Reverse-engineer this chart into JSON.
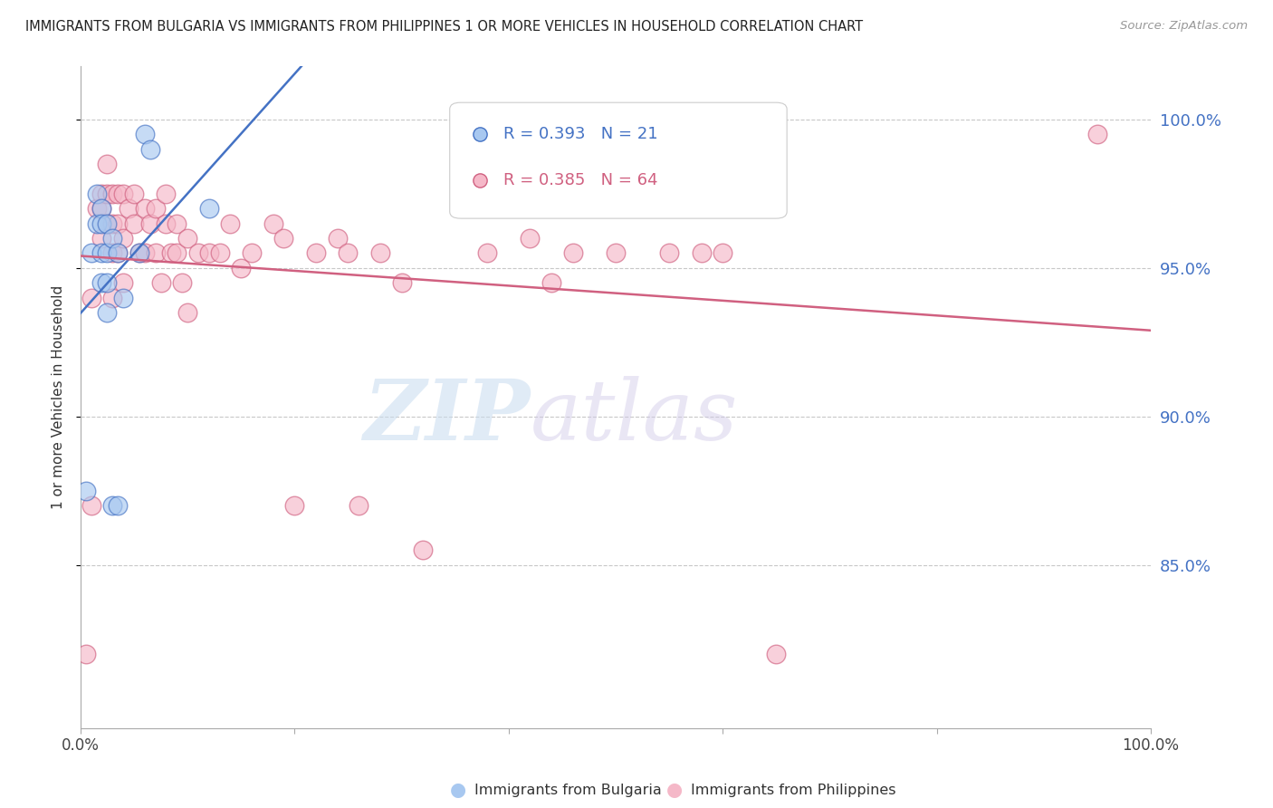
{
  "title": "IMMIGRANTS FROM BULGARIA VS IMMIGRANTS FROM PHILIPPINES 1 OR MORE VEHICLES IN HOUSEHOLD CORRELATION CHART",
  "source": "Source: ZipAtlas.com",
  "ylabel": "1 or more Vehicles in Household",
  "ytick_labels": [
    "100.0%",
    "95.0%",
    "90.0%",
    "85.0%"
  ],
  "ytick_values": [
    1.0,
    0.95,
    0.9,
    0.85
  ],
  "xlim": [
    0.0,
    1.0
  ],
  "ylim": [
    0.795,
    1.018
  ],
  "legend_bulgaria": "Immigrants from Bulgaria",
  "legend_philippines": "Immigrants from Philippines",
  "R_bulgaria": 0.393,
  "N_bulgaria": 21,
  "R_philippines": 0.385,
  "N_philippines": 64,
  "color_bulgaria": "#a8c8f0",
  "color_philippines": "#f5b8c8",
  "line_color_bulgaria": "#4472c4",
  "line_color_philippines": "#d06080",
  "watermark_zip": "ZIP",
  "watermark_atlas": "atlas",
  "background_color": "#ffffff",
  "grid_color": "#c8c8c8",
  "right_label_color": "#4472c4",
  "title_color": "#222222",
  "source_color": "#999999",
  "bulgaria_x": [
    0.005,
    0.01,
    0.015,
    0.015,
    0.02,
    0.02,
    0.02,
    0.02,
    0.025,
    0.025,
    0.025,
    0.025,
    0.03,
    0.03,
    0.035,
    0.035,
    0.04,
    0.055,
    0.06,
    0.065,
    0.12
  ],
  "bulgaria_y": [
    0.875,
    0.955,
    0.975,
    0.965,
    0.97,
    0.965,
    0.955,
    0.945,
    0.965,
    0.955,
    0.945,
    0.935,
    0.96,
    0.87,
    0.955,
    0.87,
    0.94,
    0.955,
    0.995,
    0.99,
    0.97
  ],
  "philippines_x": [
    0.005,
    0.01,
    0.01,
    0.015,
    0.02,
    0.02,
    0.02,
    0.025,
    0.025,
    0.025,
    0.03,
    0.03,
    0.03,
    0.03,
    0.035,
    0.035,
    0.035,
    0.04,
    0.04,
    0.04,
    0.045,
    0.05,
    0.05,
    0.055,
    0.06,
    0.06,
    0.065,
    0.07,
    0.07,
    0.075,
    0.08,
    0.08,
    0.085,
    0.09,
    0.09,
    0.095,
    0.1,
    0.1,
    0.11,
    0.12,
    0.13,
    0.14,
    0.15,
    0.16,
    0.18,
    0.19,
    0.2,
    0.22,
    0.24,
    0.25,
    0.26,
    0.28,
    0.3,
    0.32,
    0.38,
    0.42,
    0.44,
    0.46,
    0.5,
    0.55,
    0.58,
    0.6,
    0.65,
    0.95
  ],
  "philippines_y": [
    0.82,
    0.94,
    0.87,
    0.97,
    0.975,
    0.97,
    0.96,
    0.985,
    0.975,
    0.965,
    0.975,
    0.965,
    0.955,
    0.94,
    0.975,
    0.965,
    0.955,
    0.975,
    0.96,
    0.945,
    0.97,
    0.975,
    0.965,
    0.955,
    0.97,
    0.955,
    0.965,
    0.97,
    0.955,
    0.945,
    0.975,
    0.965,
    0.955,
    0.965,
    0.955,
    0.945,
    0.96,
    0.935,
    0.955,
    0.955,
    0.955,
    0.965,
    0.95,
    0.955,
    0.965,
    0.96,
    0.87,
    0.955,
    0.96,
    0.955,
    0.87,
    0.955,
    0.945,
    0.855,
    0.955,
    0.96,
    0.945,
    0.955,
    0.955,
    0.955,
    0.955,
    0.955,
    0.82,
    0.995
  ]
}
